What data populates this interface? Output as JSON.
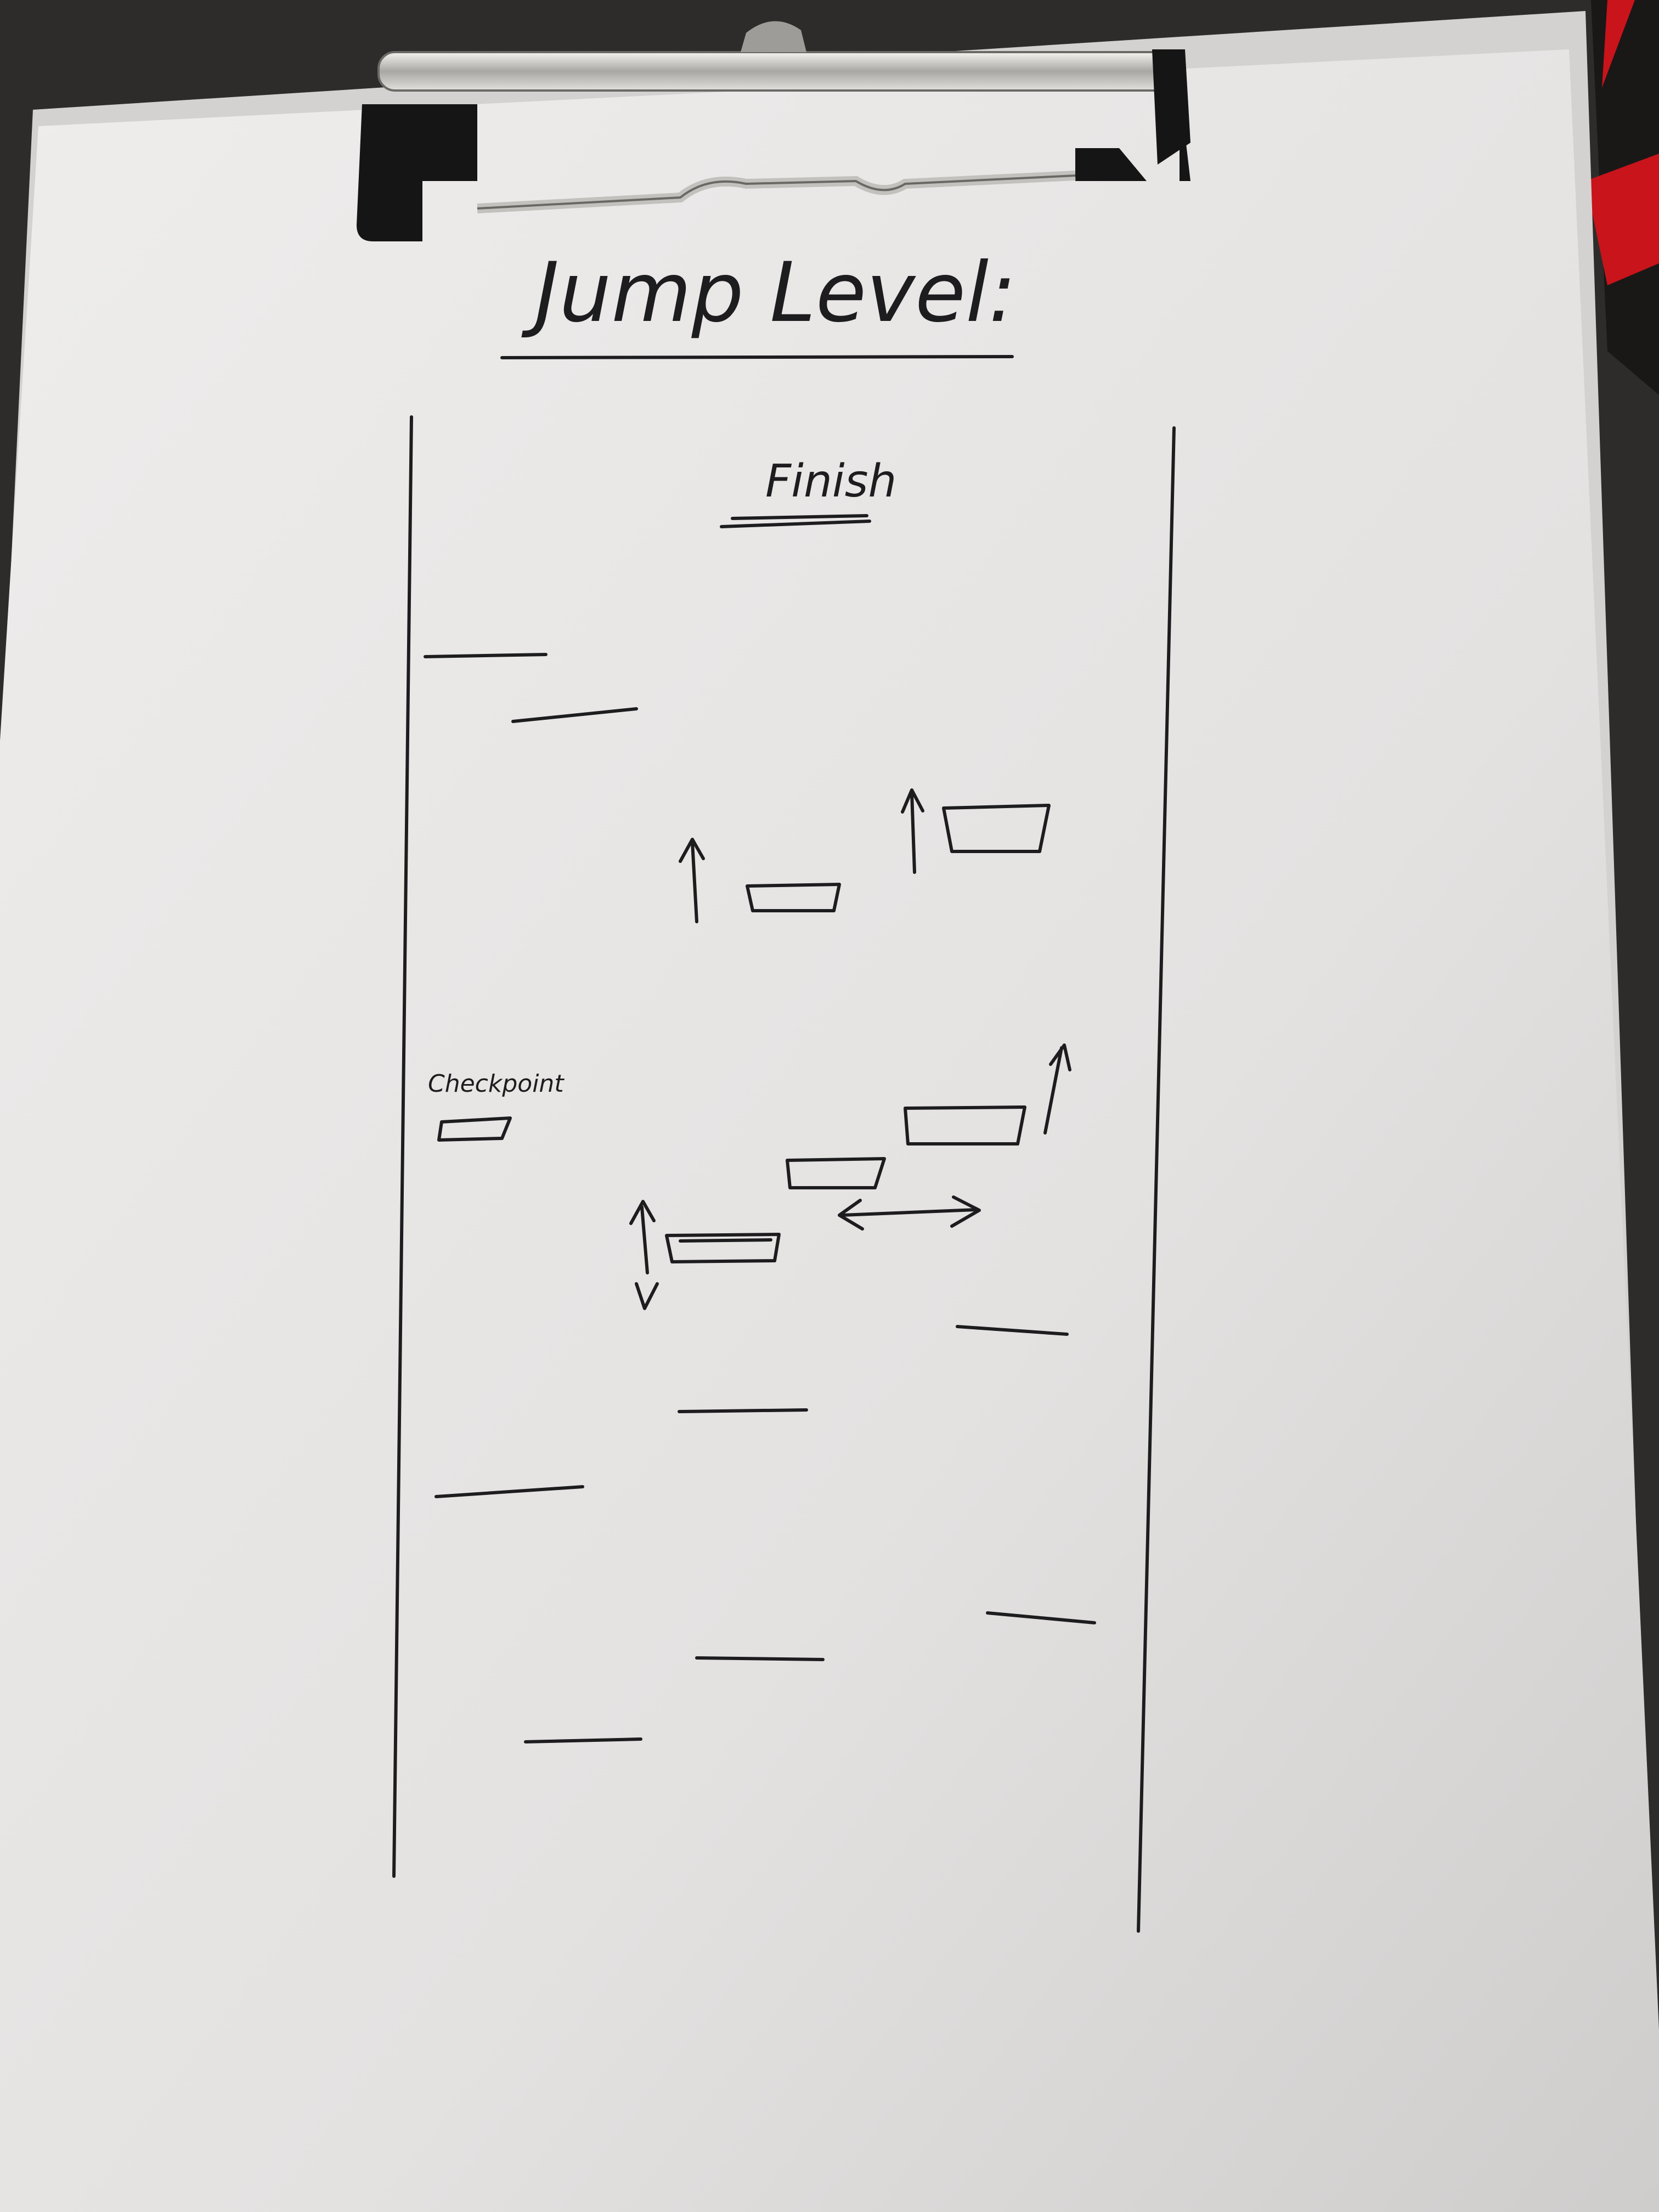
{
  "sheet": {
    "title": "Jump Level:",
    "finish_label": "Finish",
    "checkpoint_label": "Checkpoint"
  },
  "colors": {
    "background": "#2e2c2b",
    "clipboard": "#d9d8d6",
    "paper": "#e6e4e3",
    "ink": "#1d1d1f",
    "clip_metal": "#b8b6b2",
    "clip_black": "#151515",
    "fabric_red": "#c8141a"
  },
  "legend": {
    "ledge": "static platform (line)",
    "platform": "platform (rectangle)",
    "arrow_up": "moves up",
    "arrow_up_down": "moves up and down",
    "arrow_left_right": "moves left and right"
  }
}
